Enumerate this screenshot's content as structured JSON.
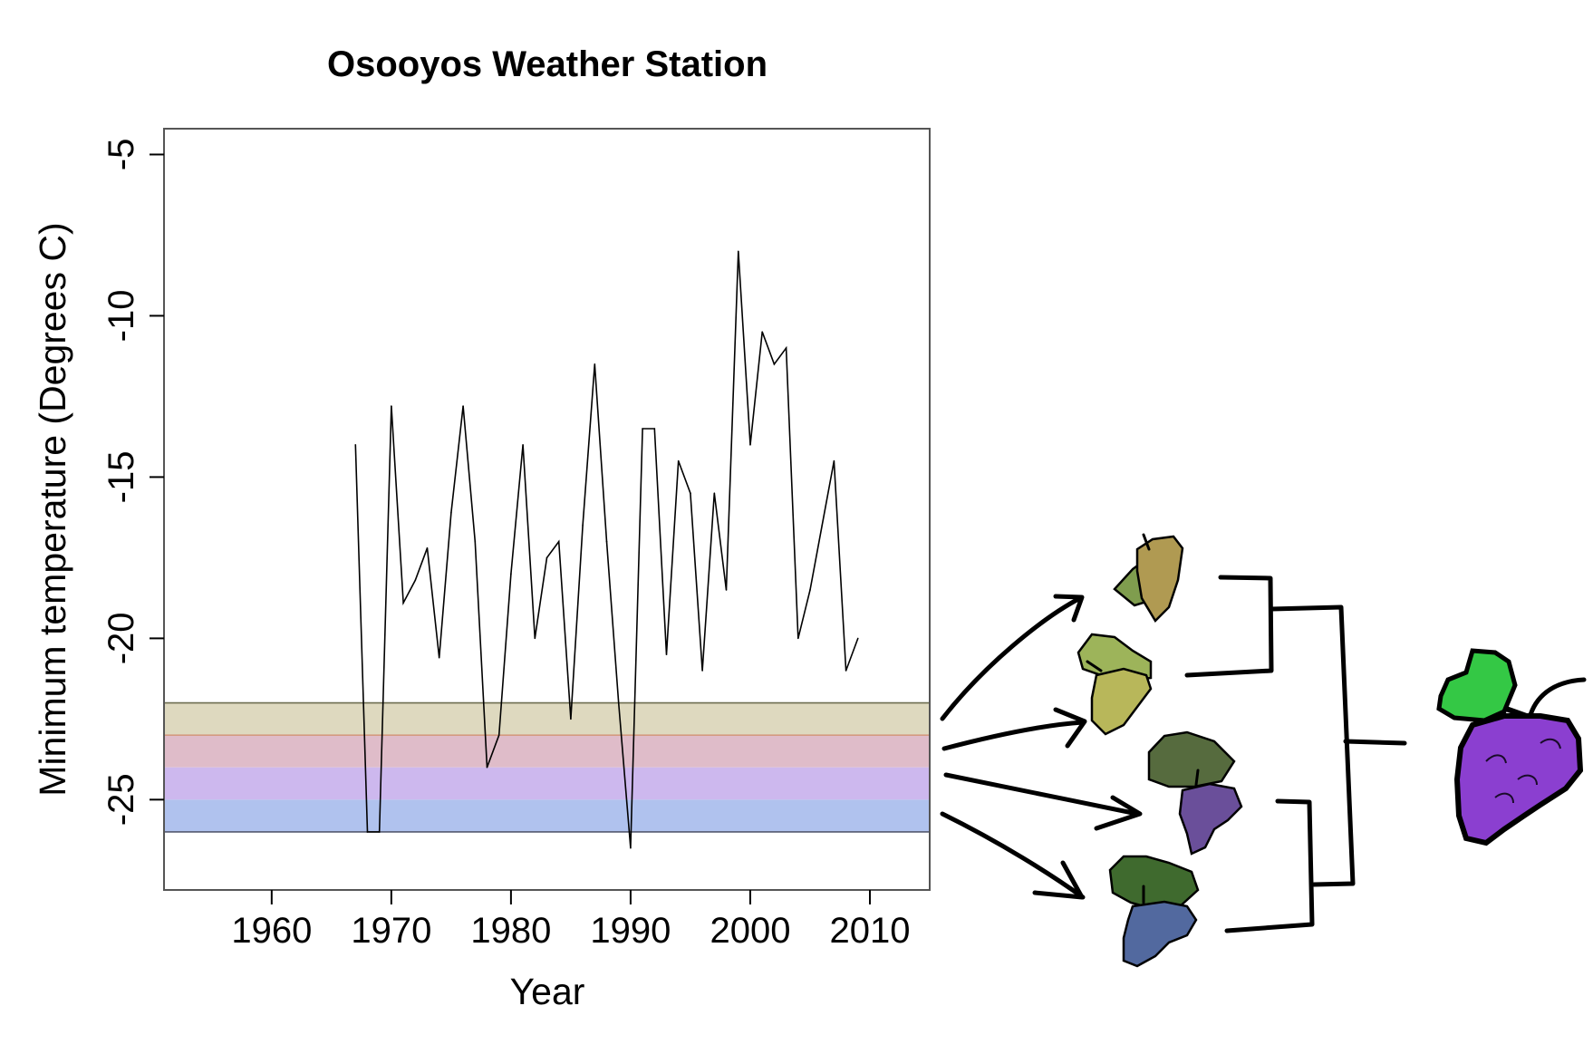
{
  "chart_data": {
    "type": "line",
    "title": "Osooyos Weather Station",
    "xlabel": "Year",
    "ylabel": "Minimum temperature (Degrees C)",
    "xlim": [
      1951,
      2015
    ],
    "ylim": [
      -27.8,
      -4.2
    ],
    "xticks": [
      1960,
      1970,
      1980,
      1990,
      2000,
      2010
    ],
    "yticks": [
      -5,
      -10,
      -15,
      -20,
      -25
    ],
    "grid": false,
    "series": [
      {
        "name": "Minimum temperature",
        "color": "#000000",
        "x": [
          1967,
          1968,
          1969,
          1970,
          1971,
          1972,
          1973,
          1974,
          1975,
          1976,
          1977,
          1978,
          1979,
          1980,
          1981,
          1982,
          1983,
          1984,
          1985,
          1986,
          1987,
          1988,
          1989,
          1990,
          1991,
          1992,
          1993,
          1994,
          1995,
          1996,
          1997,
          1998,
          1999,
          2000,
          2001,
          2002,
          2003,
          2004,
          2005,
          2006,
          2007,
          2008,
          2009
        ],
        "values": [
          -14,
          -26,
          -26,
          -12.8,
          -18.9,
          -18.2,
          -17.2,
          -20.6,
          -16.1,
          -12.8,
          -17,
          -24,
          -23,
          -18,
          -14,
          -20,
          -17.5,
          -17,
          -22.5,
          -16.5,
          -11.5,
          -17,
          -22,
          -26.5,
          -13.5,
          -13.5,
          -20.5,
          -14.5,
          -15.5,
          -21,
          -15.5,
          -18.5,
          -8,
          -14,
          -10.5,
          -11.5,
          -11,
          -20,
          -18.5,
          -16.5,
          -14.5,
          -21,
          -20
        ]
      }
    ],
    "bands": [
      {
        "from": -22,
        "to": -23,
        "color": "#ded9bf"
      },
      {
        "from": -23,
        "to": -24,
        "color": "#dfbcc9"
      },
      {
        "from": -24,
        "to": -25,
        "color": "#cdb8ee"
      },
      {
        "from": -25,
        "to": -26,
        "color": "#b0c2ee"
      }
    ]
  },
  "illustration": {
    "grape_clusters": [
      {
        "name": "golden-grape-cluster",
        "berry_color": "#b09a52",
        "leaf_color": "#7f9d4e"
      },
      {
        "name": "green-grape-cluster",
        "berry_color": "#b8b75a",
        "leaf_color": "#9db45a"
      },
      {
        "name": "purple-grape-cluster",
        "berry_color": "#6a4f9a",
        "leaf_color": "#566b3e"
      },
      {
        "name": "blue-grape-cluster",
        "berry_color": "#52699f",
        "leaf_color": "#3f6a2e"
      },
      {
        "name": "ancestral-grape-cluster",
        "berry_color": "#8b3fd0",
        "leaf_color": "#34c845"
      }
    ]
  }
}
